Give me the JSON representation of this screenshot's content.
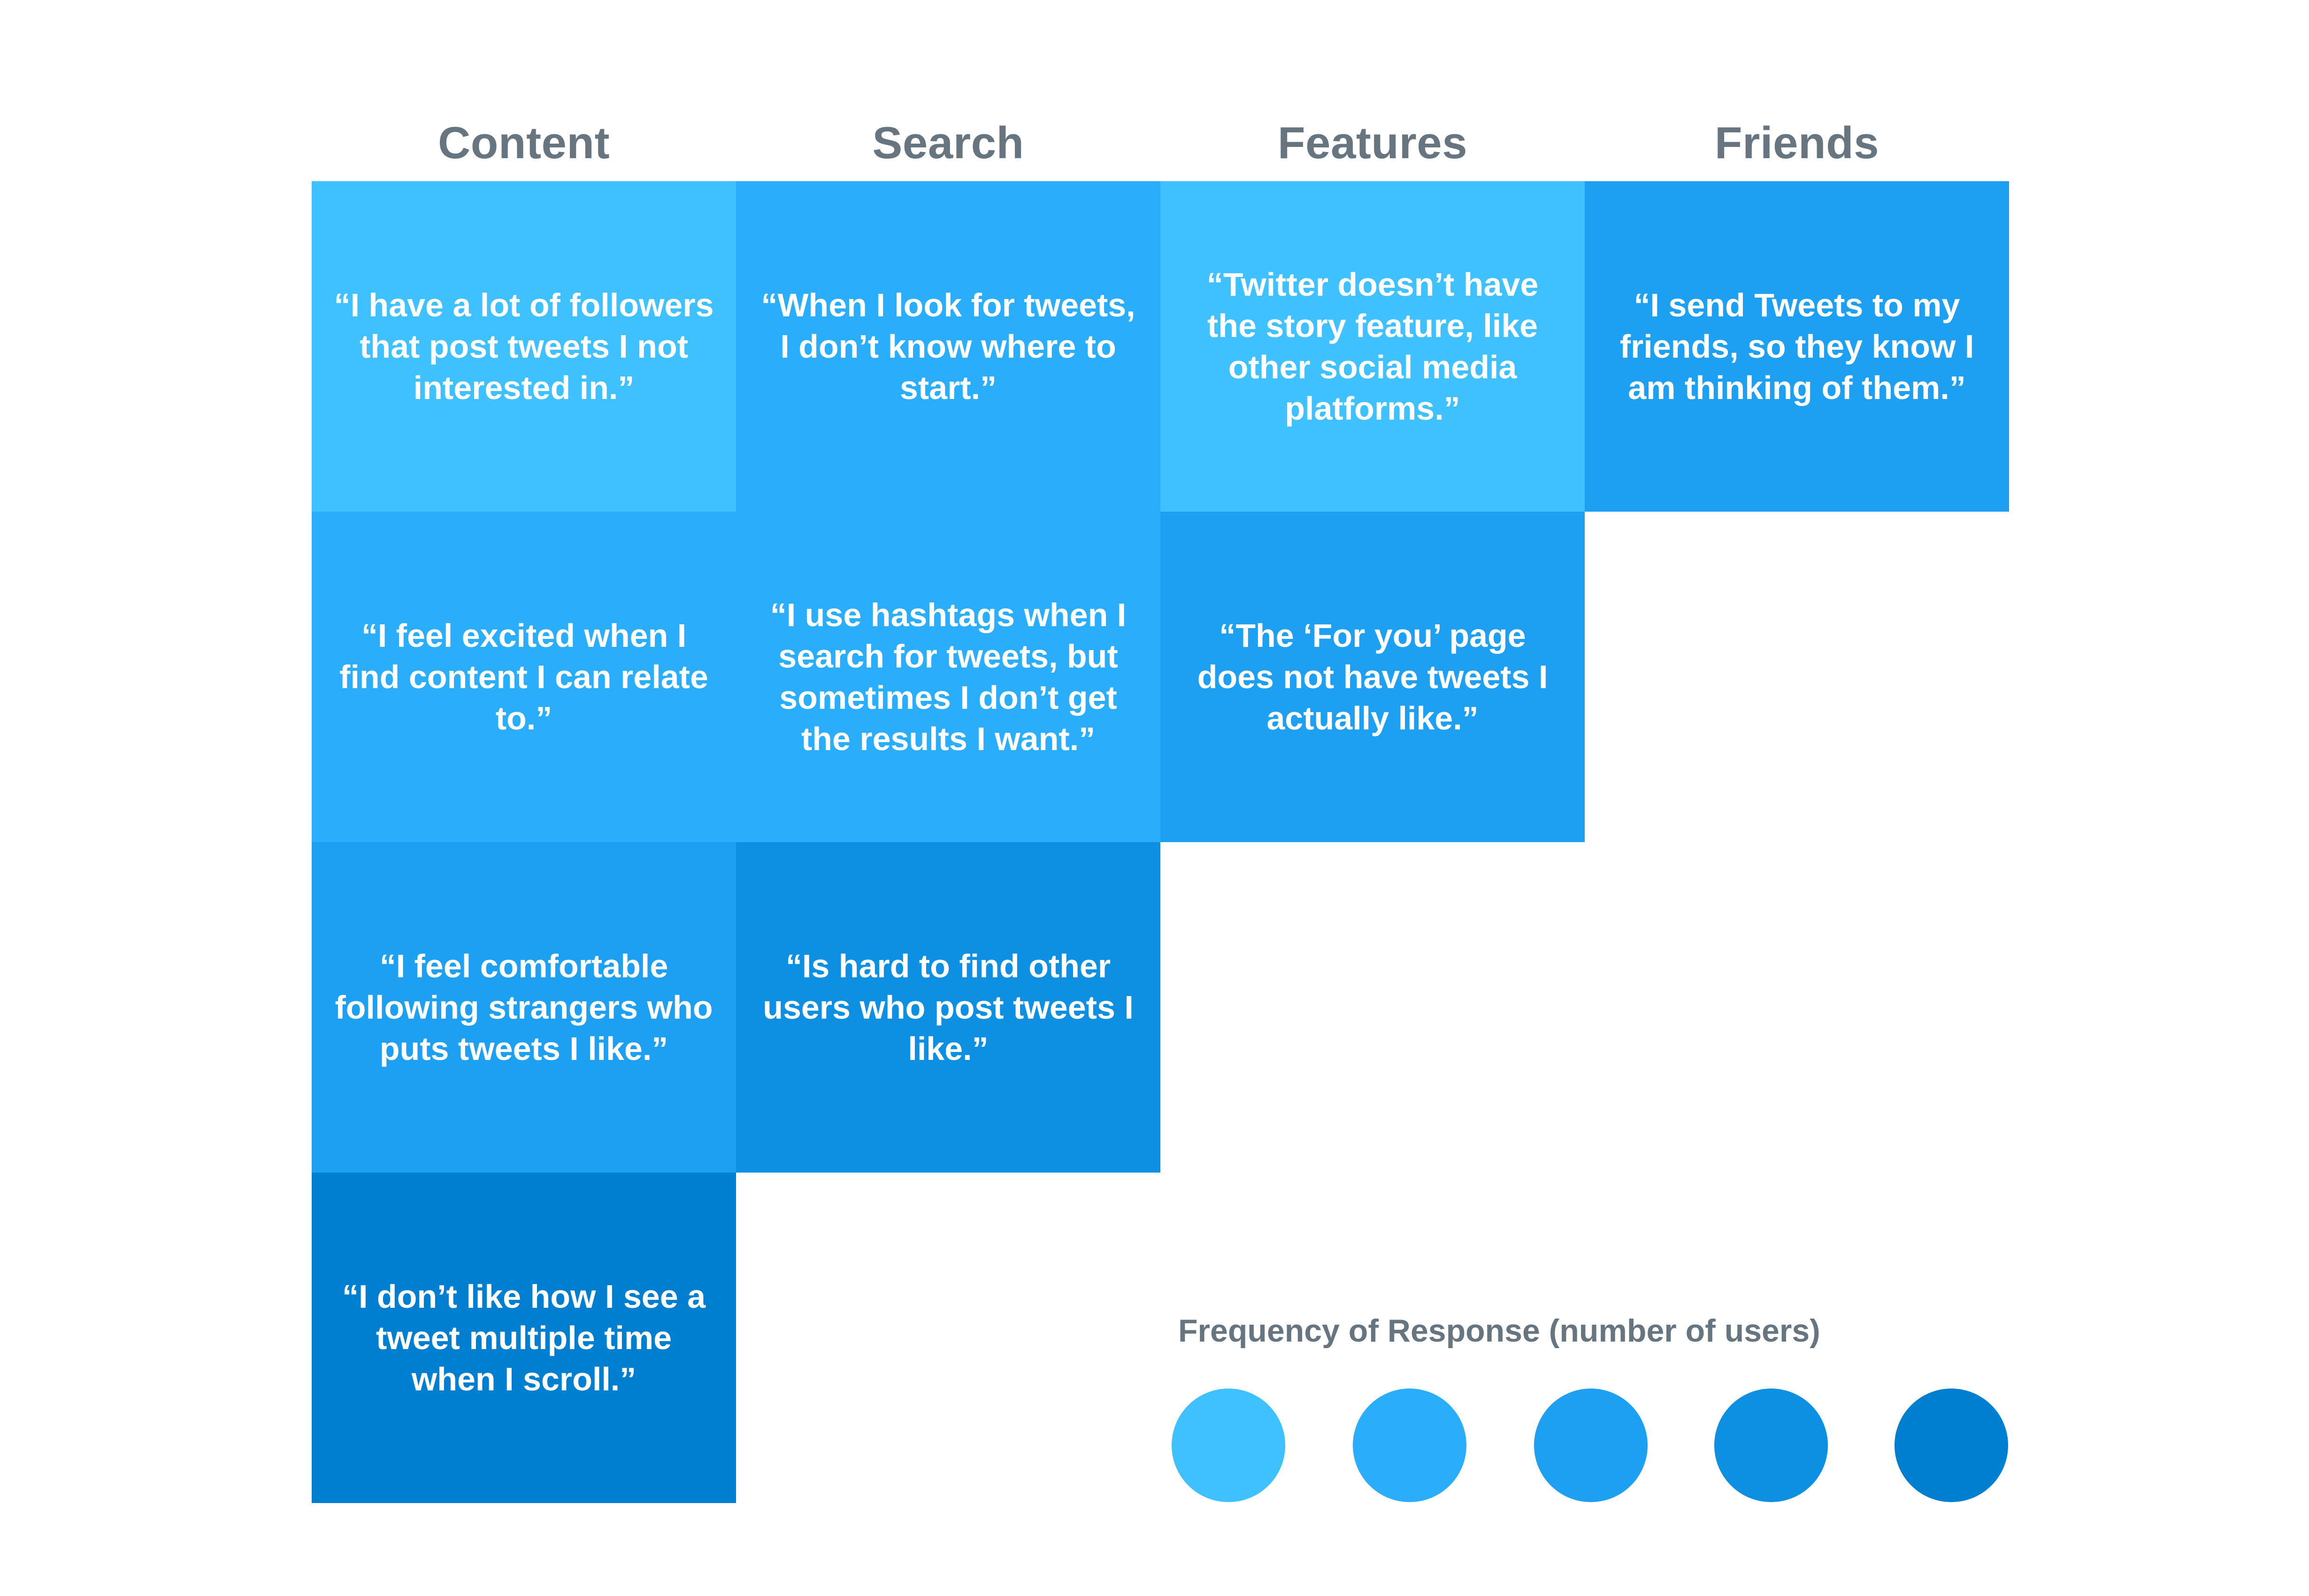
{
  "columns": [
    {
      "label": "Content"
    },
    {
      "label": "Search"
    },
    {
      "label": "Features"
    },
    {
      "label": "Friends"
    }
  ],
  "cells": {
    "content": [
      {
        "text": "“I have a lot of followers that post tweets I not interested in.”",
        "level": 1
      },
      {
        "text": "“I feel excited when I find content I can relate to.”",
        "level": 2
      },
      {
        "text": "“I feel comfortable following strangers who puts tweets I like.”",
        "level": 3
      },
      {
        "text": "“I don’t like how I see a tweet multiple time when I scroll.”",
        "level": 5
      }
    ],
    "search": [
      {
        "text": "“When I look for tweets, I don’t know where to start.”",
        "level": 2
      },
      {
        "text": "“I use hashtags when I search for tweets, but sometimes I don’t get the results I want.”",
        "level": 2
      },
      {
        "text": "“Is hard to find other users who post tweets I like.”",
        "level": 4
      }
    ],
    "features": [
      {
        "text": "“Twitter doesn’t have the story feature, like other social media platforms.”",
        "level": 1
      },
      {
        "text": "“The ‘For you’ page does not have tweets I actually like.”",
        "level": 3
      }
    ],
    "friends": [
      {
        "text": "“I send Tweets to my friends, so they know I am thinking of them.”",
        "level": 3
      }
    ]
  },
  "legend": {
    "title": "Frequency of Response (number of users)",
    "levels": [
      {
        "level": 1,
        "color": "#3fc1ff"
      },
      {
        "level": 2,
        "color": "#2aaefc"
      },
      {
        "level": 3,
        "color": "#1d9ff2"
      },
      {
        "level": 4,
        "color": "#0d8fe2"
      },
      {
        "level": 5,
        "color": "#007fd1"
      }
    ]
  },
  "colors": {
    "header_text": "#66757f",
    "cell_text": "#ffffff",
    "background": "#ffffff"
  }
}
